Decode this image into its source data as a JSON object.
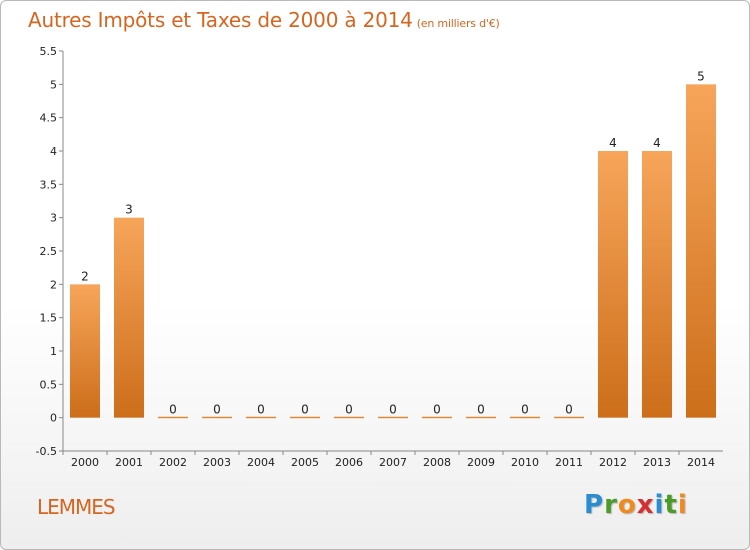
{
  "title": "Autres Impôts et Taxes de 2000 à 2014",
  "subtitle": "(en milliers d'€)",
  "commune": "LEMMES",
  "logo": {
    "letters": [
      "P",
      "r",
      "o",
      "x",
      "i",
      "t",
      "i"
    ],
    "colors": [
      "#2a8dd4",
      "#4c9b28",
      "#f08a1c",
      "#d62f2f",
      "#2a8dd4",
      "#4c9b28",
      "#f08a1c"
    ]
  },
  "colors": {
    "accent": "#d7651f",
    "bar_light": "#f7a55a",
    "bar_dark": "#cc6e1a"
  },
  "chart_data": {
    "type": "bar",
    "categories": [
      "2000",
      "2001",
      "2002",
      "2003",
      "2004",
      "2005",
      "2006",
      "2007",
      "2008",
      "2009",
      "2010",
      "2011",
      "2012",
      "2013",
      "2014"
    ],
    "values": [
      2,
      3,
      0,
      0,
      0,
      0,
      0,
      0,
      0,
      0,
      0,
      0,
      4,
      4,
      5
    ],
    "data_labels": [
      "2",
      "3",
      "0",
      "0",
      "0",
      "0",
      "0",
      "0",
      "0",
      "0",
      "0",
      "0",
      "4",
      "4",
      "5"
    ],
    "y_ticks": [
      "-0.5",
      "0",
      "0.5",
      "1",
      "1.5",
      "2",
      "2.5",
      "3",
      "3.5",
      "4",
      "4.5",
      "5",
      "5.5"
    ],
    "ylim": [
      -0.5,
      5.5
    ],
    "title": "Autres Impôts et Taxes de 2000 à 2014",
    "xlabel": "",
    "ylabel": "",
    "grid": false
  }
}
